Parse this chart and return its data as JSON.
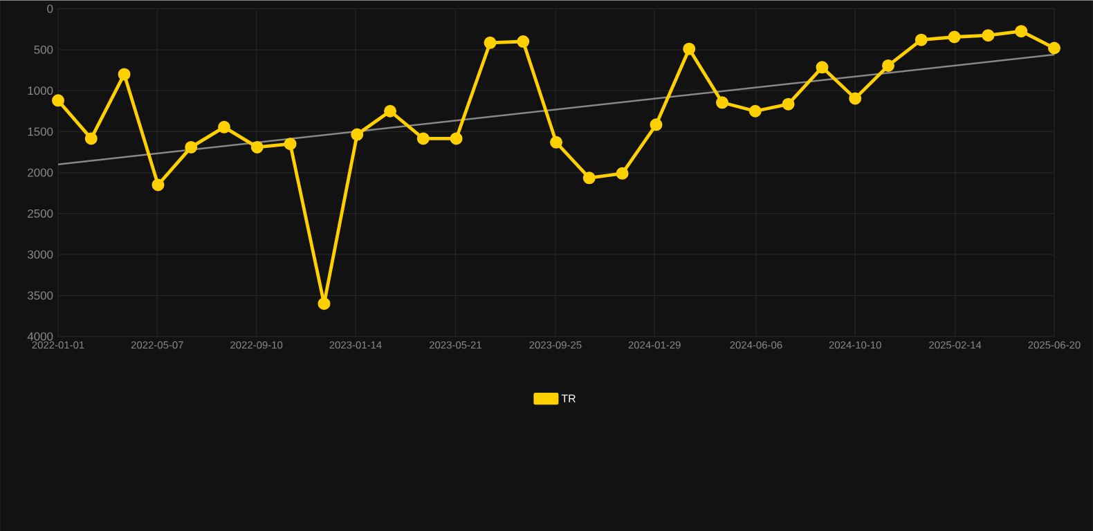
{
  "chart_data": {
    "type": "line",
    "xlim": [
      "2022-01-01",
      "2025-06-20"
    ],
    "ylim": [
      4000,
      0
    ],
    "xticks": [
      "2022-01-01",
      "2022-05-07",
      "2022-09-10",
      "2023-01-14",
      "2023-05-21",
      "2023-09-25",
      "2024-01-29",
      "2024-06-06",
      "2024-10-10",
      "2025-02-14",
      "2025-06-20"
    ],
    "yticks": [
      0,
      500,
      1000,
      1500,
      2000,
      2500,
      3000,
      3500,
      4000
    ],
    "grid": true,
    "legend": "bottom",
    "marker": "circle",
    "line_style": "solid",
    "x": [
      "2022-01-01",
      "2022-02-12",
      "2022-03-26",
      "2022-05-08",
      "2022-06-19",
      "2022-07-31",
      "2022-09-11",
      "2022-10-23",
      "2022-12-05",
      "2023-01-16",
      "2023-02-27",
      "2023-04-10",
      "2023-05-22",
      "2023-07-04",
      "2023-08-15",
      "2023-09-26",
      "2023-11-07",
      "2023-12-19",
      "2024-01-31",
      "2024-03-13",
      "2024-04-24",
      "2024-06-05",
      "2024-07-17",
      "2024-08-29",
      "2024-10-10",
      "2024-11-21",
      "2025-01-02",
      "2025-02-13",
      "2025-03-28",
      "2025-05-09",
      "2025-06-20"
    ],
    "series": [
      {
        "name": "TR",
        "color": "#ffd000",
        "values": [
          1120,
          1585,
          800,
          2150,
          1690,
          1445,
          1690,
          1650,
          3600,
          1535,
          1250,
          1585,
          1585,
          415,
          400,
          1630,
          2065,
          2010,
          1415,
          490,
          1145,
          1250,
          1165,
          715,
          1095,
          695,
          380,
          345,
          325,
          275,
          480
        ]
      },
      {
        "type": "line",
        "color": "#888888",
        "marker": "none",
        "x": [
          "2022-01-01",
          "2025-06-20"
        ],
        "values": [
          1900,
          560
        ]
      }
    ]
  }
}
